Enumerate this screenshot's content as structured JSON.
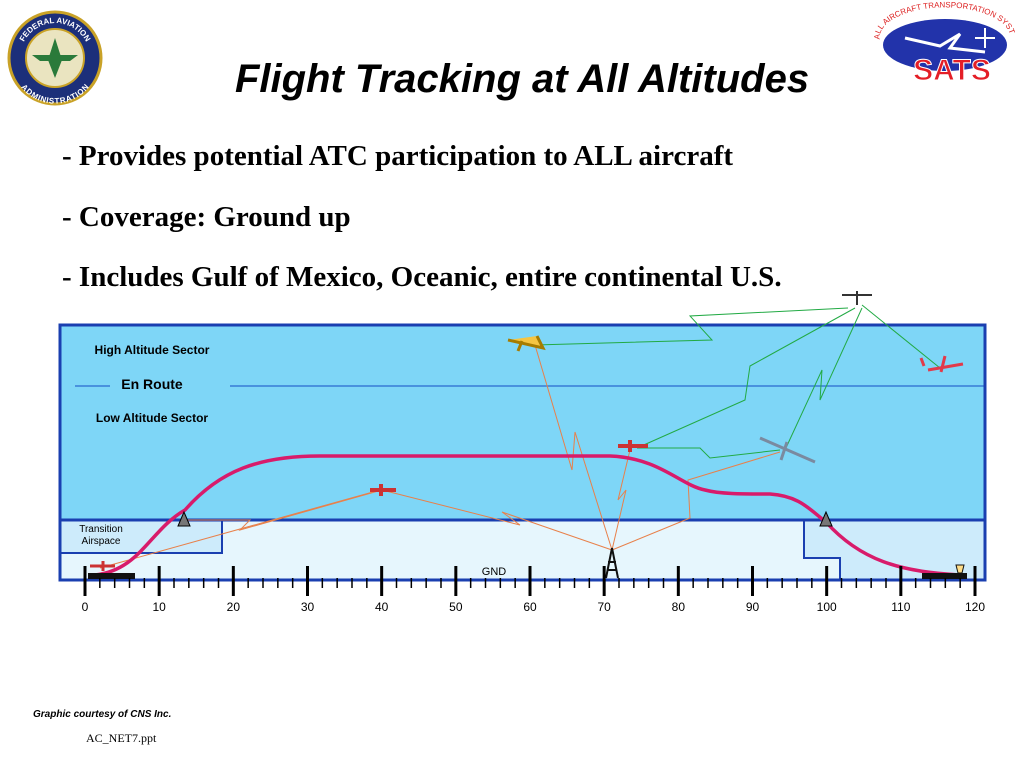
{
  "header": {
    "title": "Flight Tracking at All Altitudes",
    "left_logo": {
      "top": "FEDERAL AVIATION",
      "bottom": "ADMINISTRATION"
    },
    "right_logo": {
      "arc": "SMALL AIRCRAFT TRANSPORTATION SYSTEM",
      "name": "SATS"
    }
  },
  "bullets": [
    "- Provides potential ATC participation to ALL aircraft",
    "- Coverage: Ground up",
    "- Includes Gulf of Mexico, Oceanic, entire continental U.S."
  ],
  "diagram": {
    "high": "High Altitude Sector",
    "en_route": "En Route",
    "low": "Low Altitude Sector",
    "transition": "Transition\nAirspace",
    "ground": "GND",
    "scale": [
      0,
      10,
      20,
      30,
      40,
      50,
      60,
      70,
      80,
      90,
      100,
      110,
      120
    ]
  },
  "footer": {
    "credit": "Graphic courtesy of CNS Inc.",
    "file": "AC_NET7.ppt"
  }
}
